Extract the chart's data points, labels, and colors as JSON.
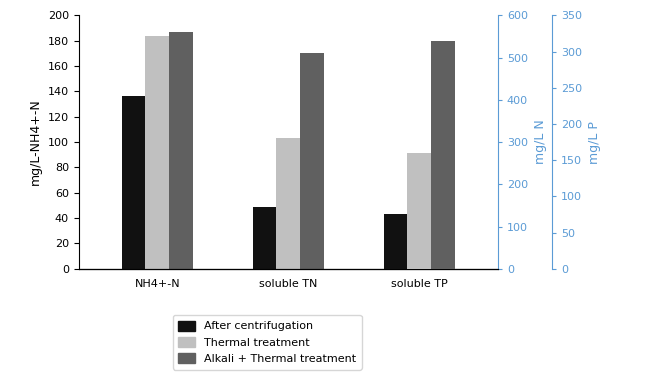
{
  "categories": [
    "NH4+-N",
    "soluble TN",
    "soluble TP"
  ],
  "series_left": {
    "After centrifugation": [
      136,
      49,
      null
    ],
    "Thermal treatment": [
      184,
      103,
      null
    ],
    "Alkali + Thermal treatment": [
      187,
      170,
      null
    ]
  },
  "series_mid": {
    "After centrifugation": [
      null,
      null,
      null
    ],
    "Thermal treatment": [
      null,
      null,
      null
    ],
    "Alkali + Thermal treatment": [
      null,
      null,
      null
    ]
  },
  "series_right": {
    "After centrifugation": [
      null,
      null,
      75
    ],
    "Thermal treatment": [
      null,
      null,
      160
    ],
    "Alkali + Thermal treatment": [
      null,
      null,
      315
    ]
  },
  "bar_colors": {
    "After centrifugation": "#111111",
    "Thermal treatment": "#c0c0c0",
    "Alkali + Thermal treatment": "#606060"
  },
  "ylabel_left": "mg/L-NH4+-N",
  "ylabel_mid": "mg/L N",
  "ylabel_right": "mg/L P",
  "ylim_left": [
    0,
    200
  ],
  "ylim_mid": [
    0,
    600
  ],
  "ylim_right": [
    0,
    350
  ],
  "yticks_left": [
    0,
    20,
    40,
    60,
    80,
    100,
    120,
    140,
    160,
    180,
    200
  ],
  "yticks_mid": [
    0,
    100,
    200,
    300,
    400,
    500,
    600
  ],
  "yticks_right": [
    0,
    50,
    100,
    150,
    200,
    250,
    300,
    350
  ],
  "bar_width": 0.18,
  "group_positions": [
    1.0,
    2.0,
    3.0
  ],
  "legend_labels": [
    "After centrifugation",
    "Thermal treatment",
    "Alkali + Thermal treatment"
  ],
  "figsize": [
    6.55,
    3.84
  ],
  "dpi": 100,
  "fontsize_axis": 9,
  "fontsize_tick": 8,
  "fontsize_legend": 8,
  "axis_color": "#5b9bd5",
  "tick_color_right": "#5b9bd5"
}
